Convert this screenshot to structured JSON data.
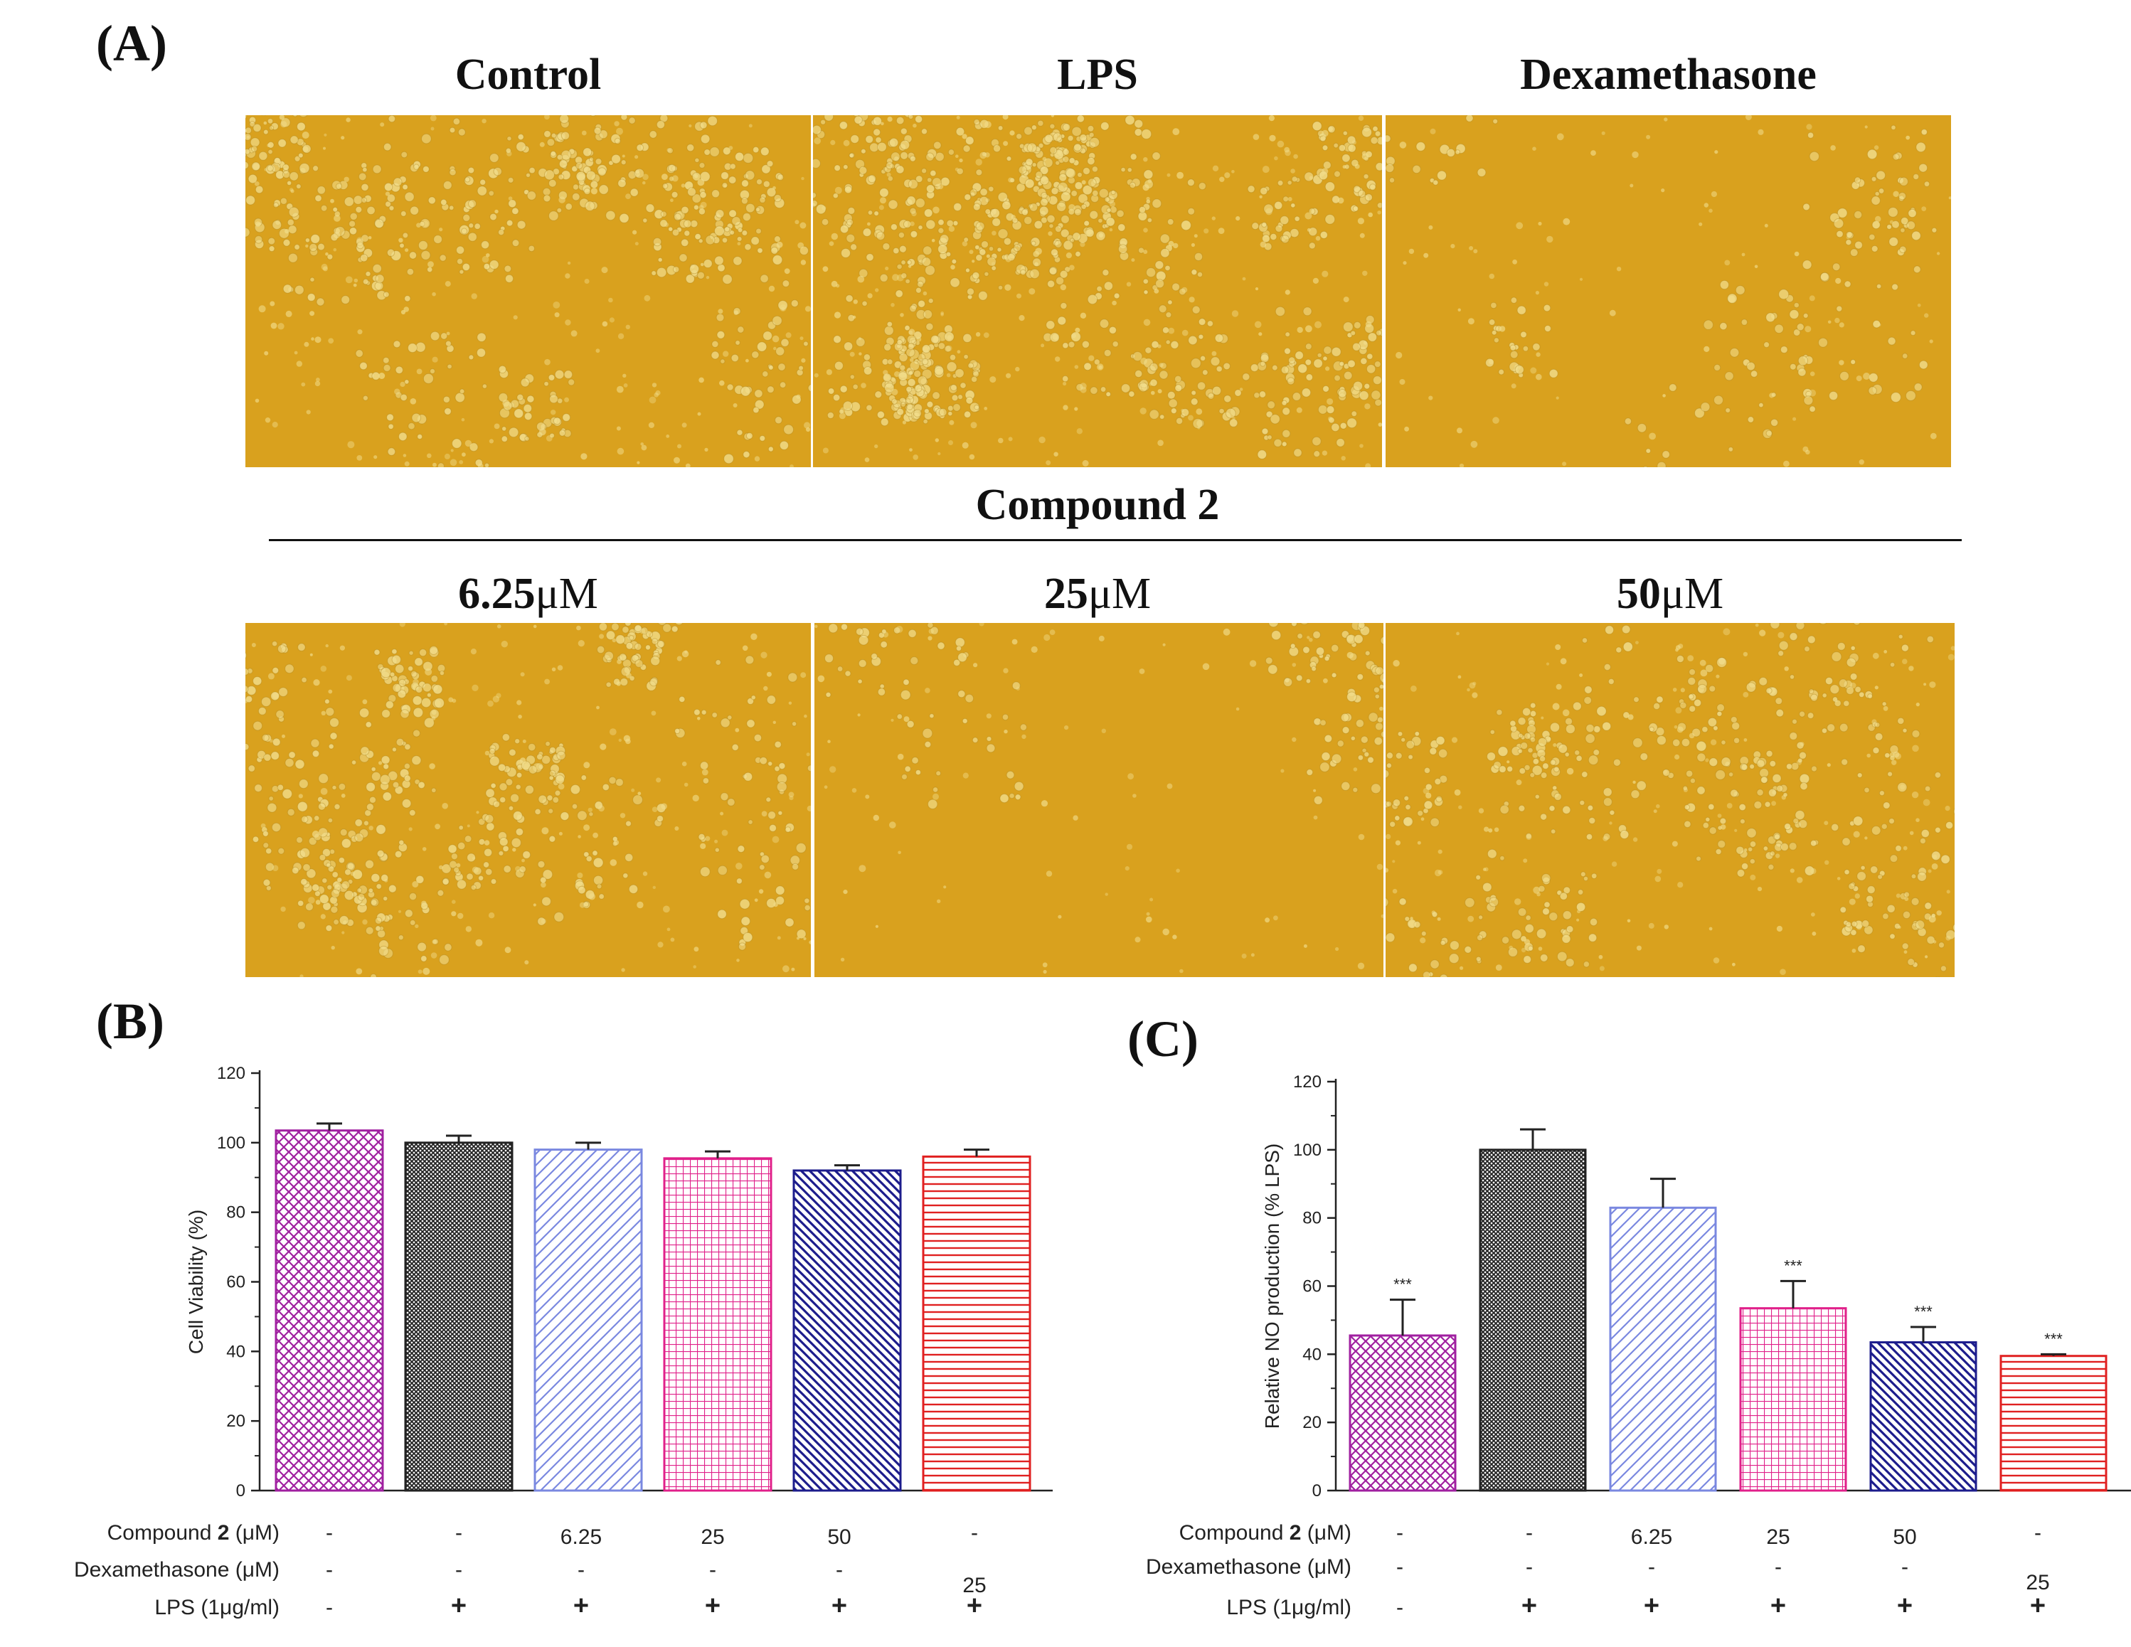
{
  "panels": {
    "a_label": "(A)",
    "b_label": "(B)",
    "c_label": "(C)"
  },
  "micrographs": {
    "top_titles": [
      "Control",
      "LPS",
      "Dexamethasone"
    ],
    "compound_header": "Compound 2",
    "conc_values": [
      "6.25",
      "25",
      "50"
    ],
    "conc_unit": "μM",
    "colors": {
      "tint": "#d9a11e",
      "cell": "#f1dc8a"
    }
  },
  "chart_data": [
    {
      "type": "bar",
      "panel": "B",
      "title": "",
      "xlabel": "",
      "ylabel": "Cell Viability (%)",
      "ylim": [
        0,
        120
      ],
      "yticks": [
        0,
        20,
        40,
        60,
        80,
        100,
        120
      ],
      "values": [
        103.5,
        100,
        98,
        95.5,
        92,
        96
      ],
      "errors": [
        2,
        2,
        2,
        2,
        1.5,
        2
      ],
      "colors": [
        "#a020a0",
        "#222222",
        "#7a88e0",
        "#e0208a",
        "#1c1c8c",
        "#e02020"
      ],
      "patterns": [
        "crosshatch",
        "dense-crosshatch",
        "diagonal",
        "grid",
        "diagonal-back",
        "horizontal"
      ],
      "significance": [
        "",
        "",
        "",
        "",
        "",
        ""
      ],
      "conditions": {
        "compound_label_pre": "Compound ",
        "compound_label_num": "2",
        "compound_label_post": " (μM)",
        "compound_values": [
          "-",
          "-",
          "6.25",
          "25",
          "50",
          "-"
        ],
        "dex_label": "Dexamethasone (μM)",
        "dex_values": [
          "-",
          "-",
          "-",
          "-",
          "-",
          "25"
        ],
        "lps_label": "LPS (1μg/ml)",
        "lps_values": [
          "-",
          "+",
          "+",
          "+",
          "+",
          "+"
        ]
      }
    },
    {
      "type": "bar",
      "panel": "C",
      "title": "",
      "xlabel": "",
      "ylabel": "Relative NO production (% LPS)",
      "ylim": [
        0,
        120
      ],
      "yticks": [
        0,
        20,
        40,
        60,
        80,
        100,
        120
      ],
      "values": [
        45.5,
        100,
        83,
        53.5,
        43.5,
        39.5
      ],
      "errors": [
        10.5,
        6,
        8.5,
        8,
        4.5,
        0.5
      ],
      "colors": [
        "#a020a0",
        "#222222",
        "#7a88e0",
        "#e0208a",
        "#1c1c8c",
        "#e02020"
      ],
      "patterns": [
        "crosshatch",
        "dense-crosshatch",
        "diagonal",
        "grid",
        "diagonal-back",
        "horizontal"
      ],
      "significance": [
        "***",
        "",
        "",
        "***",
        "***",
        "***"
      ],
      "conditions": {
        "compound_label_pre": "Compound ",
        "compound_label_num": "2",
        "compound_label_post": " (μM)",
        "compound_values": [
          "-",
          "-",
          "6.25",
          "25",
          "50",
          "-"
        ],
        "dex_label": "Dexamethasone (μM)",
        "dex_values": [
          "-",
          "-",
          "-",
          "-",
          "-",
          "25"
        ],
        "lps_label": "LPS (1μg/ml)",
        "lps_values": [
          "-",
          "+",
          "+",
          "+",
          "+",
          "+"
        ]
      }
    }
  ]
}
